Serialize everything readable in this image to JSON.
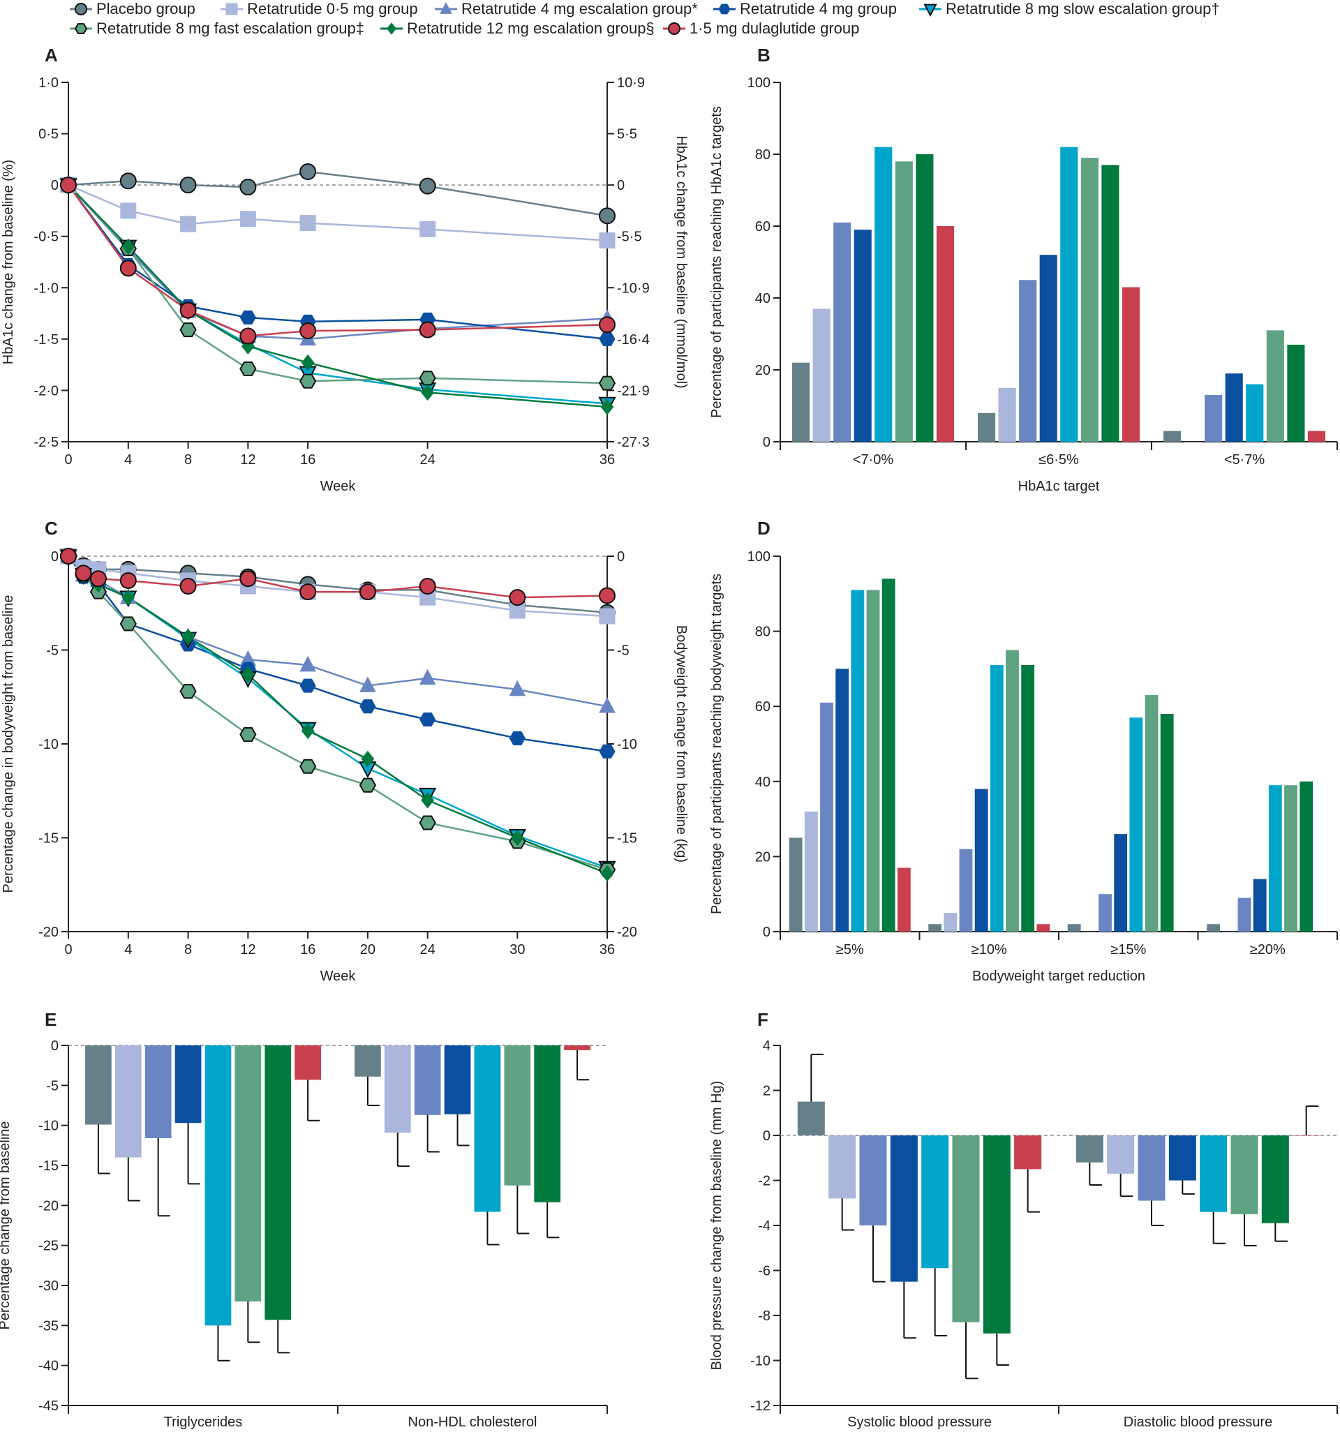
{
  "groups": [
    {
      "name": "Placebo group",
      "color": "#66808a",
      "marker": "circle",
      "outline": true
    },
    {
      "name": "Retatrutide 0·5 mg group",
      "color": "#aab6dc",
      "marker": "square",
      "outline": false
    },
    {
      "name": "Retatrutide 4 mg escalation group*",
      "color": "#6a86c2",
      "marker": "triangle-up",
      "outline": false
    },
    {
      "name": "Retatrutide 4 mg group",
      "color": "#0b4fa0",
      "marker": "hexagon",
      "outline": false
    },
    {
      "name": "Retatrutide 8 mg slow escalation group†",
      "color": "#00a5c9",
      "marker": "triangle-down",
      "outline": true
    },
    {
      "name": "Retatrutide 8 mg fast escalation group‡",
      "color": "#5fa383",
      "marker": "hexagon",
      "outline": true
    },
    {
      "name": "Retatrutide 12 mg escalation group§",
      "color": "#007a3e",
      "marker": "diamond",
      "outline": false
    },
    {
      "name": "1·5 mg dulaglutide  group",
      "color": "#c8404f",
      "marker": "circle",
      "outline": true
    }
  ],
  "chart_data": [
    {
      "panel": "A",
      "type": "line",
      "xlabel": "Week",
      "ylabel": "HbA1c change from baseline (%)",
      "ylabel_right": "HbA1c change from baseline (mmol/mol)",
      "xlim": [
        0,
        36
      ],
      "ylim": [
        -2.5,
        1.0
      ],
      "xticks": [
        0,
        4,
        8,
        12,
        16,
        24,
        36
      ],
      "yticks": [
        1.0,
        0.5,
        0,
        -0.5,
        -1.0,
        -1.5,
        -2.0,
        -2.5
      ],
      "ytick_labels": [
        "1·0",
        "0·5",
        "0",
        "-0·5",
        "-1·0",
        "-1·5",
        "-2·0",
        "-2·5"
      ],
      "ytick_labels_right": [
        "10·9",
        "5·5",
        "0",
        "-5·5",
        "-10·9",
        "-16·4",
        "-21·9",
        "-27·3"
      ],
      "x": [
        0,
        4,
        8,
        12,
        16,
        24,
        36
      ],
      "series": [
        {
          "group": 0,
          "values": [
            0,
            0.04,
            0,
            -0.02,
            0.13,
            -0.01,
            -0.3
          ]
        },
        {
          "group": 1,
          "values": [
            0,
            -0.25,
            -0.38,
            -0.33,
            -0.37,
            -0.43,
            -0.54
          ]
        },
        {
          "group": 2,
          "values": [
            0,
            -0.63,
            -1.23,
            -1.47,
            -1.5,
            -1.4,
            -1.3
          ]
        },
        {
          "group": 3,
          "values": [
            0,
            -0.78,
            -1.18,
            -1.29,
            -1.33,
            -1.31,
            -1.5
          ]
        },
        {
          "group": 4,
          "values": [
            0,
            -0.6,
            -1.22,
            -1.55,
            -1.83,
            -1.99,
            -2.13
          ]
        },
        {
          "group": 5,
          "values": [
            0,
            -0.62,
            -1.41,
            -1.79,
            -1.91,
            -1.88,
            -1.93
          ]
        },
        {
          "group": 6,
          "values": [
            0,
            -0.6,
            -1.22,
            -1.57,
            -1.73,
            -2.02,
            -2.16
          ]
        },
        {
          "group": 7,
          "values": [
            0,
            -0.81,
            -1.22,
            -1.47,
            -1.42,
            -1.41,
            -1.36
          ]
        }
      ]
    },
    {
      "panel": "B",
      "type": "bar",
      "xlabel": "HbA1c target",
      "ylabel": "Percentage of participants reaching HbA1c targets",
      "ylim": [
        0,
        100
      ],
      "yticks": [
        0,
        20,
        40,
        60,
        80,
        100
      ],
      "categories": [
        "<7·0%",
        "≤6·5%",
        "<5·7%"
      ],
      "series": [
        {
          "group": 0,
          "values": [
            22,
            8,
            3
          ]
        },
        {
          "group": 1,
          "values": [
            37,
            15,
            0
          ]
        },
        {
          "group": 2,
          "values": [
            61,
            45,
            13
          ]
        },
        {
          "group": 3,
          "values": [
            59,
            52,
            19
          ]
        },
        {
          "group": 4,
          "values": [
            82,
            82,
            16
          ]
        },
        {
          "group": 5,
          "values": [
            78,
            79,
            31
          ]
        },
        {
          "group": 6,
          "values": [
            80,
            77,
            27
          ]
        },
        {
          "group": 7,
          "values": [
            60,
            43,
            3
          ]
        }
      ]
    },
    {
      "panel": "C",
      "type": "line",
      "xlabel": "Week",
      "ylabel": "Percentage change in bodyweight from baseline",
      "ylabel_right": "Bodyweight change from baseline (kg)",
      "xlim": [
        0,
        36
      ],
      "ylim": [
        -20,
        0
      ],
      "xticks": [
        0,
        4,
        8,
        12,
        16,
        20,
        24,
        30,
        36
      ],
      "yticks": [
        0,
        -5,
        -10,
        -15,
        -20
      ],
      "ytick_labels": [
        "0",
        "-5",
        "-10",
        "-15",
        "-20"
      ],
      "ytick_labels_right": [
        "0",
        "-5",
        "-10",
        "-15",
        "-20"
      ],
      "x": [
        0,
        1,
        2,
        4,
        8,
        12,
        16,
        20,
        24,
        30,
        36
      ],
      "series": [
        {
          "group": 0,
          "values": [
            0,
            -0.5,
            -0.7,
            -0.7,
            -0.9,
            -1.1,
            -1.5,
            -1.8,
            -1.8,
            -2.6,
            -3.0
          ]
        },
        {
          "group": 1,
          "values": [
            0,
            -0.6,
            -0.7,
            -0.9,
            -1.3,
            -1.6,
            -1.9,
            -1.9,
            -2.2,
            -2.9,
            -3.2
          ]
        },
        {
          "group": 2,
          "values": [
            0,
            -1.0,
            -1.3,
            -2.2,
            -4.3,
            -5.5,
            -5.8,
            -6.9,
            -6.5,
            -7.1,
            -8.0
          ]
        },
        {
          "group": 3,
          "values": [
            0,
            -1.1,
            -1.5,
            -3.6,
            -4.7,
            -6.0,
            -6.9,
            -8.0,
            -8.7,
            -9.7,
            -10.4
          ]
        },
        {
          "group": 4,
          "values": [
            0,
            -1.0,
            -1.5,
            -2.2,
            -4.4,
            -6.5,
            -9.2,
            -11.3,
            -12.7,
            -14.9,
            -16.6
          ]
        },
        {
          "group": 5,
          "values": [
            0,
            -1.0,
            -1.9,
            -3.6,
            -7.2,
            -9.5,
            -11.2,
            -12.2,
            -14.2,
            -15.2,
            -16.7
          ]
        },
        {
          "group": 6,
          "values": [
            0,
            -1.0,
            -1.5,
            -2.2,
            -4.3,
            -6.3,
            -9.3,
            -10.8,
            -13.0,
            -15.0,
            -16.9
          ]
        },
        {
          "group": 7,
          "values": [
            0,
            -0.9,
            -1.2,
            -1.3,
            -1.6,
            -1.2,
            -1.9,
            -1.9,
            -1.6,
            -2.2,
            -2.1
          ]
        }
      ]
    },
    {
      "panel": "D",
      "type": "bar",
      "xlabel": "Bodyweight target reduction",
      "ylabel": "Percentage of participants reaching bodyweight targets",
      "ylim": [
        0,
        100
      ],
      "yticks": [
        0,
        20,
        40,
        60,
        80,
        100
      ],
      "categories": [
        "≥5%",
        "≥10%",
        "≥15%",
        "≥20%"
      ],
      "series": [
        {
          "group": 0,
          "values": [
            25,
            2,
            2,
            2
          ]
        },
        {
          "group": 1,
          "values": [
            32,
            5,
            0,
            0
          ]
        },
        {
          "group": 2,
          "values": [
            61,
            22,
            10,
            9
          ]
        },
        {
          "group": 3,
          "values": [
            70,
            38,
            26,
            14
          ]
        },
        {
          "group": 4,
          "values": [
            91,
            71,
            57,
            39
          ]
        },
        {
          "group": 5,
          "values": [
            91,
            75,
            63,
            39
          ]
        },
        {
          "group": 6,
          "values": [
            94,
            71,
            58,
            40
          ]
        },
        {
          "group": 7,
          "values": [
            17,
            2,
            0,
            0
          ]
        }
      ]
    },
    {
      "panel": "E",
      "type": "bar",
      "xlabel": "",
      "ylabel": "Percentage change from baseline",
      "ylim": [
        -45,
        0
      ],
      "yticks": [
        0,
        -5,
        -10,
        -15,
        -20,
        -25,
        -30,
        -35,
        -40,
        -45
      ],
      "categories": [
        "Triglycerides",
        "Non-HDL cholesterol"
      ],
      "series": [
        {
          "group": 0,
          "values": [
            -9.9,
            -3.9
          ],
          "error_end": [
            -16.0,
            -7.5
          ]
        },
        {
          "group": 1,
          "values": [
            -14.0,
            -10.9
          ],
          "error_end": [
            -19.4,
            -15.1
          ]
        },
        {
          "group": 2,
          "values": [
            -11.6,
            -8.7
          ],
          "error_end": [
            -21.3,
            -13.3
          ]
        },
        {
          "group": 3,
          "values": [
            -9.7,
            -8.6
          ],
          "error_end": [
            -17.3,
            -12.5
          ]
        },
        {
          "group": 4,
          "values": [
            -35.0,
            -20.8
          ],
          "error_end": [
            -39.4,
            -24.9
          ]
        },
        {
          "group": 5,
          "values": [
            -32.0,
            -17.5
          ],
          "error_end": [
            -37.1,
            -23.5
          ]
        },
        {
          "group": 6,
          "values": [
            -34.3,
            -19.6
          ],
          "error_end": [
            -38.4,
            -24.0
          ]
        },
        {
          "group": 7,
          "values": [
            -4.3,
            -0.6
          ],
          "error_end": [
            -9.4,
            -4.3
          ]
        }
      ]
    },
    {
      "panel": "F",
      "type": "bar",
      "xlabel": "",
      "ylabel": "Blood pressure change from baseline (mm Hg)",
      "ylim": [
        -12,
        4
      ],
      "yticks": [
        4,
        2,
        0,
        -2,
        -4,
        -6,
        -8,
        -10,
        -12
      ],
      "categories": [
        "Systolic blood pressure",
        "Diastolic blood pressure"
      ],
      "series": [
        {
          "group": 0,
          "values": [
            1.5,
            -1.2
          ],
          "error_end": [
            3.6,
            -2.2
          ]
        },
        {
          "group": 1,
          "values": [
            -2.8,
            -1.7
          ],
          "error_end": [
            -4.2,
            -2.7
          ]
        },
        {
          "group": 2,
          "values": [
            -4.0,
            -2.9
          ],
          "error_end": [
            -6.5,
            -4.0
          ]
        },
        {
          "group": 3,
          "values": [
            -6.5,
            -2.0
          ],
          "error_end": [
            -9.0,
            -2.6
          ]
        },
        {
          "group": 4,
          "values": [
            -5.9,
            -3.4
          ],
          "error_end": [
            -8.9,
            -4.8
          ]
        },
        {
          "group": 5,
          "values": [
            -8.3,
            -3.5
          ],
          "error_end": [
            -10.8,
            -4.9
          ]
        },
        {
          "group": 6,
          "values": [
            -8.8,
            -3.9
          ],
          "error_end": [
            -10.2,
            -4.7
          ]
        },
        {
          "group": 7,
          "values": [
            -1.5,
            0
          ],
          "error_end": [
            -3.4,
            1.3
          ]
        }
      ]
    }
  ]
}
